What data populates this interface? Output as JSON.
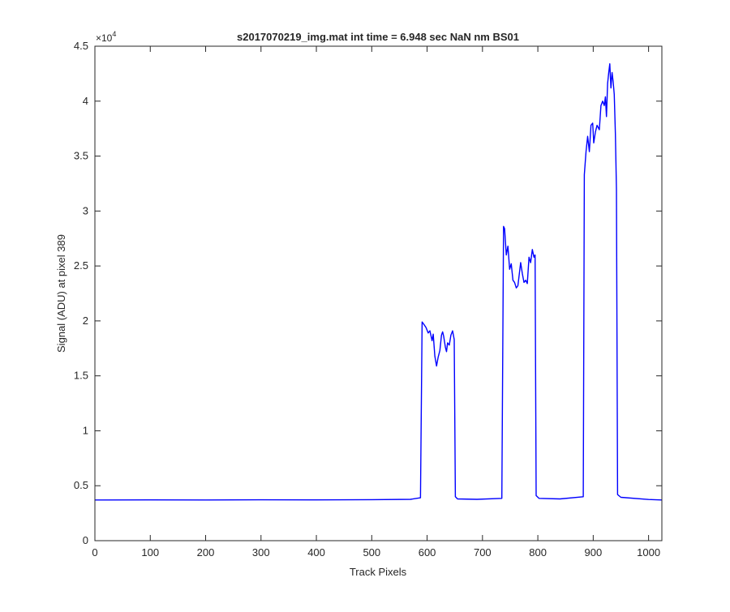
{
  "chart_data": {
    "type": "line",
    "title": "s2017070219_img.mat int time = 6.948 sec  NaN nm BS01",
    "xlabel": "Track Pixels",
    "ylabel": "Signal (ADU) at pixel 389",
    "xlim": [
      0,
      1024
    ],
    "ylim": [
      0,
      45000
    ],
    "x_ticks": [
      0,
      100,
      200,
      300,
      400,
      500,
      600,
      700,
      800,
      900,
      1000
    ],
    "y_ticks": [
      0,
      0.5,
      1,
      1.5,
      2,
      2.5,
      3,
      3.5,
      4,
      4.5
    ],
    "y_multiplier": "×10",
    "y_multiplier_exp": "4",
    "grid": false,
    "line_color": "#0000ff",
    "series": [
      {
        "values": [
          [
            0,
            3700
          ],
          [
            100,
            3710
          ],
          [
            200,
            3700
          ],
          [
            300,
            3720
          ],
          [
            400,
            3710
          ],
          [
            500,
            3730
          ],
          [
            570,
            3760
          ],
          [
            588,
            3900
          ],
          [
            591,
            19900
          ],
          [
            594,
            19700
          ],
          [
            598,
            19400
          ],
          [
            602,
            18900
          ],
          [
            605,
            19100
          ],
          [
            609,
            18200
          ],
          [
            611,
            18800
          ],
          [
            614,
            16800
          ],
          [
            617,
            15900
          ],
          [
            620,
            16700
          ],
          [
            623,
            17300
          ],
          [
            626,
            18700
          ],
          [
            628,
            19000
          ],
          [
            630,
            18600
          ],
          [
            633,
            17600
          ],
          [
            635,
            17200
          ],
          [
            637,
            18000
          ],
          [
            640,
            17800
          ],
          [
            643,
            18700
          ],
          [
            646,
            19100
          ],
          [
            649,
            18300
          ],
          [
            651,
            4000
          ],
          [
            655,
            3800
          ],
          [
            690,
            3760
          ],
          [
            735,
            3850
          ],
          [
            738,
            28600
          ],
          [
            740,
            28400
          ],
          [
            743,
            26000
          ],
          [
            746,
            26800
          ],
          [
            749,
            24700
          ],
          [
            752,
            25200
          ],
          [
            755,
            23700
          ],
          [
            758,
            23500
          ],
          [
            761,
            23000
          ],
          [
            764,
            23200
          ],
          [
            767,
            24500
          ],
          [
            769,
            25300
          ],
          [
            772,
            24300
          ],
          [
            775,
            23500
          ],
          [
            778,
            23700
          ],
          [
            781,
            23400
          ],
          [
            784,
            25800
          ],
          [
            787,
            25300
          ],
          [
            790,
            26500
          ],
          [
            793,
            25800
          ],
          [
            795,
            26000
          ],
          [
            797,
            4100
          ],
          [
            802,
            3850
          ],
          [
            840,
            3800
          ],
          [
            882,
            4000
          ],
          [
            884,
            33300
          ],
          [
            887,
            35400
          ],
          [
            890,
            36800
          ],
          [
            893,
            35400
          ],
          [
            896,
            37800
          ],
          [
            899,
            38000
          ],
          [
            901,
            36200
          ],
          [
            904,
            37200
          ],
          [
            907,
            37800
          ],
          [
            911,
            37400
          ],
          [
            914,
            39600
          ],
          [
            917,
            40000
          ],
          [
            920,
            39600
          ],
          [
            922,
            40400
          ],
          [
            924,
            38600
          ],
          [
            926,
            41600
          ],
          [
            928,
            42600
          ],
          [
            930,
            43400
          ],
          [
            932,
            41200
          ],
          [
            934,
            42600
          ],
          [
            936,
            41800
          ],
          [
            938,
            40600
          ],
          [
            940,
            37000
          ],
          [
            942,
            32000
          ],
          [
            944,
            4200
          ],
          [
            950,
            3950
          ],
          [
            1000,
            3750
          ],
          [
            1024,
            3700
          ]
        ]
      }
    ]
  }
}
